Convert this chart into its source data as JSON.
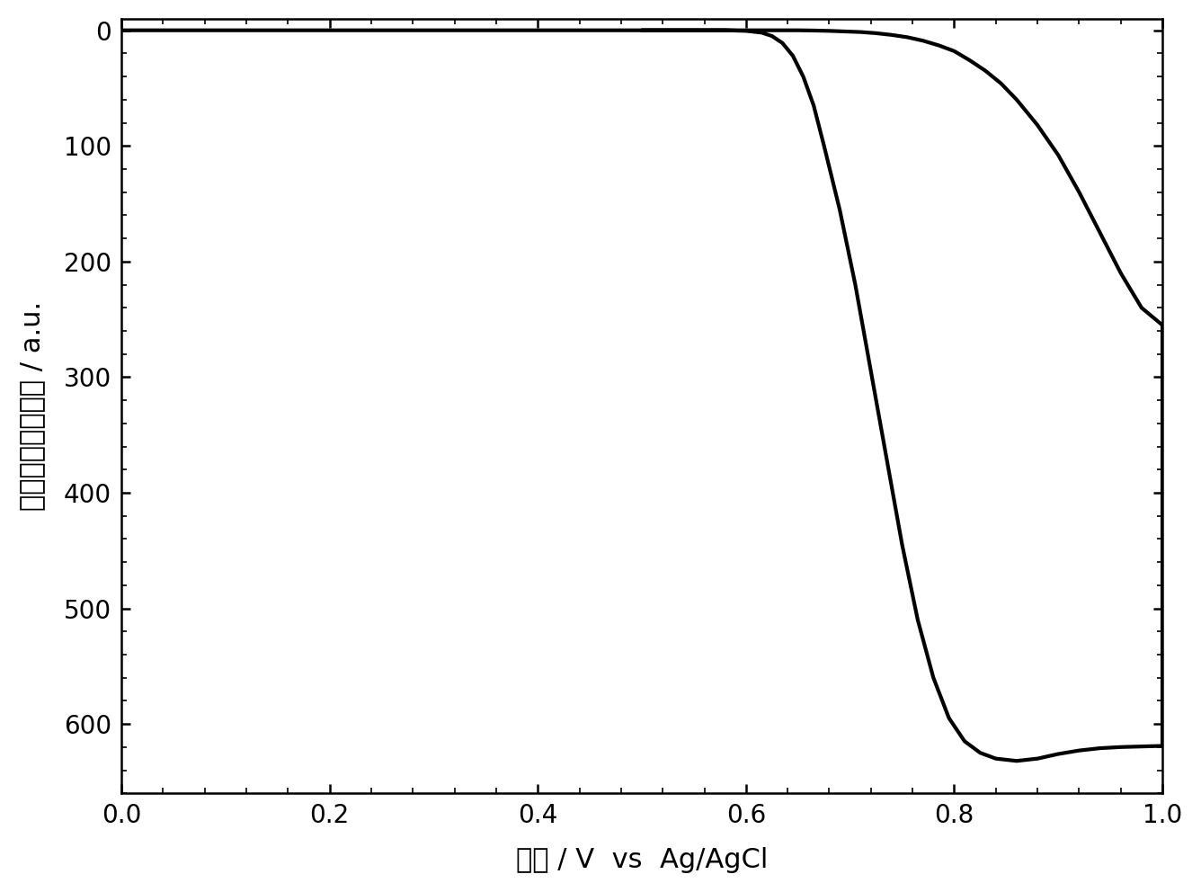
{
  "xlabel": "电位 / V ×× Ag/AgCl",
  "xlabel_parts": [
    "电位 / V ",
    "vs",
    " Ag/AgCl"
  ],
  "ylabel": "电致化学发光强度 / a.u.",
  "xlim": [
    0.0,
    1.0
  ],
  "ylim": [
    660,
    -10
  ],
  "xticks": [
    0.0,
    0.2,
    0.4,
    0.6,
    0.8,
    1.0
  ],
  "yticks": [
    0,
    100,
    200,
    300,
    400,
    500,
    600
  ],
  "line_color": "#000000",
  "line_width": 3.0,
  "background_color": "#ffffff",
  "xlabel_fontsize": 22,
  "ylabel_fontsize": 22,
  "tick_fontsize": 20,
  "forward_x": [
    0.0,
    0.05,
    0.1,
    0.15,
    0.2,
    0.25,
    0.3,
    0.35,
    0.4,
    0.45,
    0.5,
    0.55,
    0.58,
    0.6,
    0.615,
    0.625,
    0.635,
    0.645,
    0.655,
    0.665,
    0.675,
    0.69,
    0.705,
    0.72,
    0.735,
    0.75,
    0.765,
    0.78,
    0.795,
    0.81,
    0.825,
    0.84,
    0.85,
    0.855,
    0.86,
    0.865,
    0.87,
    0.88,
    0.89,
    0.9,
    0.92,
    0.94,
    0.96,
    0.98,
    1.0
  ],
  "forward_y": [
    0.0,
    0.0,
    0.0,
    0.0,
    0.0,
    0.0,
    0.0,
    0.0,
    0.0,
    0.0,
    0.0,
    0.0,
    0.0,
    0.5,
    2.0,
    5.0,
    11.0,
    22.0,
    40.0,
    65.0,
    100.0,
    155.0,
    220.0,
    295.0,
    370.0,
    445.0,
    510.0,
    560.0,
    595.0,
    615.0,
    625.0,
    630.0,
    631.0,
    631.5,
    632.0,
    631.5,
    631.0,
    630.0,
    628.0,
    626.0,
    623.0,
    621.0,
    620.0,
    619.5,
    619.0
  ],
  "return_x": [
    1.0,
    0.98,
    0.96,
    0.94,
    0.92,
    0.9,
    0.88,
    0.86,
    0.845,
    0.83,
    0.815,
    0.8,
    0.785,
    0.77,
    0.755,
    0.74,
    0.725,
    0.71,
    0.695,
    0.68,
    0.665,
    0.65,
    0.635,
    0.62,
    0.61,
    0.6,
    0.59,
    0.58,
    0.56,
    0.54,
    0.52,
    0.5
  ],
  "return_y": [
    255.0,
    240.0,
    210.0,
    175.0,
    140.0,
    108.0,
    82.0,
    60.0,
    46.0,
    35.0,
    26.0,
    18.0,
    13.0,
    9.0,
    6.0,
    4.0,
    2.5,
    1.5,
    1.0,
    0.5,
    0.2,
    0.0,
    0.0,
    0.0,
    0.0,
    0.0,
    0.0,
    0.0,
    0.0,
    0.0,
    0.0,
    0.0
  ]
}
